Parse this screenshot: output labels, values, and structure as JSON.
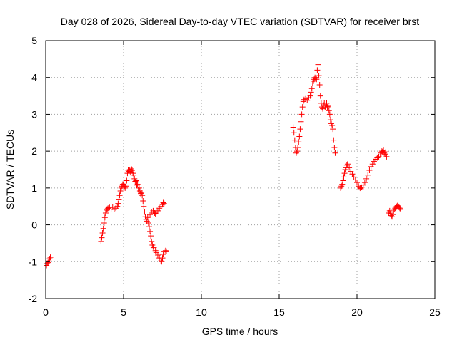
{
  "chart_data": {
    "type": "scatter",
    "title": "Day 028 of 2026, Sidereal Day-to-day VTEC variation (SDTVAR) for receiver brst",
    "xlabel": "GPS time / hours",
    "ylabel": "SDTVAR / TECUs",
    "xlim": [
      0,
      25
    ],
    "ylim": [
      -2,
      5
    ],
    "xticks": [
      0,
      5,
      10,
      15,
      20,
      25
    ],
    "yticks": [
      -2,
      -1,
      0,
      1,
      2,
      3,
      4,
      5
    ],
    "grid": true,
    "marker": "plus",
    "colors": {
      "series": "#ff0000",
      "axes": "#000000",
      "grid": "#a0a0a0"
    },
    "series": [
      {
        "name": "SDTVAR",
        "points": [
          [
            0.0,
            -1.12
          ],
          [
            0.05,
            -1.1
          ],
          [
            0.1,
            -1.05
          ],
          [
            0.15,
            -1.02
          ],
          [
            0.2,
            -0.98
          ],
          [
            0.25,
            -0.92
          ],
          [
            0.3,
            -0.88
          ],
          [
            3.55,
            -0.45
          ],
          [
            3.6,
            -0.35
          ],
          [
            3.65,
            -0.22
          ],
          [
            3.7,
            -0.1
          ],
          [
            3.75,
            0.05
          ],
          [
            3.8,
            0.2
          ],
          [
            3.85,
            0.32
          ],
          [
            3.9,
            0.4
          ],
          [
            3.95,
            0.43
          ],
          [
            4.0,
            0.45
          ],
          [
            4.1,
            0.47
          ],
          [
            4.2,
            0.43
          ],
          [
            4.3,
            0.48
          ],
          [
            4.4,
            0.42
          ],
          [
            4.5,
            0.45
          ],
          [
            4.6,
            0.5
          ],
          [
            4.65,
            0.58
          ],
          [
            4.7,
            0.68
          ],
          [
            4.75,
            0.8
          ],
          [
            4.8,
            0.92
          ],
          [
            4.85,
            1.0
          ],
          [
            4.9,
            1.05
          ],
          [
            4.95,
            1.1
          ],
          [
            5.0,
            1.1
          ],
          [
            5.05,
            1.05
          ],
          [
            5.1,
            1.0
          ],
          [
            5.15,
            1.05
          ],
          [
            5.2,
            1.2
          ],
          [
            5.25,
            1.4
          ],
          [
            5.3,
            1.48
          ],
          [
            5.35,
            1.45
          ],
          [
            5.4,
            1.5
          ],
          [
            5.45,
            1.42
          ],
          [
            5.5,
            1.52
          ],
          [
            5.55,
            1.48
          ],
          [
            5.6,
            1.4
          ],
          [
            5.65,
            1.35
          ],
          [
            5.7,
            1.25
          ],
          [
            5.75,
            1.18
          ],
          [
            5.8,
            1.2
          ],
          [
            5.85,
            1.08
          ],
          [
            5.9,
            1.1
          ],
          [
            5.95,
            0.95
          ],
          [
            6.0,
            1.0
          ],
          [
            6.05,
            0.92
          ],
          [
            6.1,
            0.85
          ],
          [
            6.15,
            0.88
          ],
          [
            6.2,
            0.8
          ],
          [
            6.25,
            0.65
          ],
          [
            6.3,
            0.5
          ],
          [
            6.35,
            0.35
          ],
          [
            6.4,
            0.22
          ],
          [
            6.45,
            0.15
          ],
          [
            6.5,
            0.1
          ],
          [
            6.55,
            0.2
          ],
          [
            6.6,
            0.05
          ],
          [
            6.65,
            -0.05
          ],
          [
            6.7,
            -0.18
          ],
          [
            6.75,
            -0.3
          ],
          [
            6.8,
            -0.45
          ],
          [
            6.85,
            -0.55
          ],
          [
            6.9,
            -0.6
          ],
          [
            6.95,
            -0.62
          ],
          [
            6.7,
            0.28
          ],
          [
            6.8,
            0.35
          ],
          [
            6.9,
            0.38
          ],
          [
            7.0,
            0.32
          ],
          [
            7.05,
            0.3
          ],
          [
            7.1,
            0.35
          ],
          [
            7.2,
            0.38
          ],
          [
            7.3,
            0.45
          ],
          [
            7.4,
            0.5
          ],
          [
            7.5,
            0.55
          ],
          [
            7.55,
            0.6
          ],
          [
            7.6,
            0.58
          ],
          [
            7.05,
            -0.7
          ],
          [
            7.1,
            -0.75
          ],
          [
            7.2,
            -0.82
          ],
          [
            7.3,
            -0.9
          ],
          [
            7.4,
            -0.98
          ],
          [
            7.45,
            -1.0
          ],
          [
            7.5,
            -0.9
          ],
          [
            7.55,
            -0.8
          ],
          [
            7.6,
            -0.72
          ],
          [
            7.7,
            -0.7
          ],
          [
            7.75,
            -0.72
          ],
          [
            15.9,
            2.65
          ],
          [
            15.95,
            2.5
          ],
          [
            16.0,
            2.3
          ],
          [
            16.05,
            2.1
          ],
          [
            16.1,
            1.95
          ],
          [
            16.15,
            2.0
          ],
          [
            16.2,
            2.1
          ],
          [
            16.25,
            2.25
          ],
          [
            16.3,
            2.4
          ],
          [
            16.35,
            2.6
          ],
          [
            16.4,
            2.8
          ],
          [
            16.45,
            3.0
          ],
          [
            16.5,
            3.2
          ],
          [
            16.55,
            3.35
          ],
          [
            16.6,
            3.4
          ],
          [
            16.7,
            3.42
          ],
          [
            16.8,
            3.38
          ],
          [
            16.9,
            3.45
          ],
          [
            17.0,
            3.5
          ],
          [
            17.05,
            3.6
          ],
          [
            17.1,
            3.7
          ],
          [
            17.15,
            3.85
          ],
          [
            17.2,
            3.9
          ],
          [
            17.25,
            3.95
          ],
          [
            17.3,
            4.0
          ],
          [
            17.35,
            3.98
          ],
          [
            17.4,
            3.95
          ],
          [
            17.45,
            4.2
          ],
          [
            17.5,
            4.35
          ],
          [
            17.55,
            4.05
          ],
          [
            17.6,
            3.8
          ],
          [
            17.65,
            3.5
          ],
          [
            17.7,
            3.3
          ],
          [
            17.75,
            3.2
          ],
          [
            17.8,
            3.15
          ],
          [
            17.85,
            3.25
          ],
          [
            17.9,
            3.3
          ],
          [
            17.95,
            3.2
          ],
          [
            18.0,
            3.25
          ],
          [
            18.05,
            3.3
          ],
          [
            18.1,
            3.2
          ],
          [
            18.15,
            3.22
          ],
          [
            18.2,
            3.1
          ],
          [
            18.25,
            3.0
          ],
          [
            18.3,
            2.85
          ],
          [
            18.35,
            2.75
          ],
          [
            18.4,
            2.7
          ],
          [
            18.45,
            2.6
          ],
          [
            18.5,
            2.3
          ],
          [
            18.55,
            2.1
          ],
          [
            18.6,
            1.95
          ],
          [
            18.95,
            1.0
          ],
          [
            19.0,
            1.05
          ],
          [
            19.05,
            1.1
          ],
          [
            19.1,
            1.2
          ],
          [
            19.15,
            1.3
          ],
          [
            19.2,
            1.4
          ],
          [
            19.25,
            1.5
          ],
          [
            19.3,
            1.55
          ],
          [
            19.35,
            1.62
          ],
          [
            19.4,
            1.65
          ],
          [
            19.5,
            1.55
          ],
          [
            19.6,
            1.45
          ],
          [
            19.7,
            1.38
          ],
          [
            19.8,
            1.3
          ],
          [
            19.9,
            1.22
          ],
          [
            20.0,
            1.15
          ],
          [
            20.1,
            1.05
          ],
          [
            20.2,
            1.0
          ],
          [
            20.25,
            0.98
          ],
          [
            20.3,
            1.02
          ],
          [
            20.4,
            1.08
          ],
          [
            20.5,
            1.15
          ],
          [
            20.6,
            1.25
          ],
          [
            20.7,
            1.35
          ],
          [
            20.8,
            1.48
          ],
          [
            20.9,
            1.58
          ],
          [
            21.0,
            1.65
          ],
          [
            21.1,
            1.72
          ],
          [
            21.2,
            1.78
          ],
          [
            21.3,
            1.82
          ],
          [
            21.4,
            1.85
          ],
          [
            21.5,
            1.9
          ],
          [
            21.55,
            1.95
          ],
          [
            21.6,
            2.0
          ],
          [
            21.65,
            1.98
          ],
          [
            21.7,
            2.02
          ],
          [
            21.75,
            1.95
          ],
          [
            21.8,
            1.92
          ],
          [
            21.85,
            1.98
          ],
          [
            21.9,
            1.85
          ],
          [
            22.0,
            0.35
          ],
          [
            22.05,
            0.32
          ],
          [
            22.1,
            0.38
          ],
          [
            22.15,
            0.3
          ],
          [
            22.2,
            0.25
          ],
          [
            22.25,
            0.22
          ],
          [
            22.3,
            0.28
          ],
          [
            22.35,
            0.35
          ],
          [
            22.4,
            0.42
          ],
          [
            22.45,
            0.45
          ],
          [
            22.5,
            0.48
          ],
          [
            22.55,
            0.5
          ],
          [
            22.6,
            0.52
          ],
          [
            22.65,
            0.5
          ],
          [
            22.7,
            0.48
          ],
          [
            22.75,
            0.45
          ],
          [
            22.8,
            0.42
          ]
        ]
      }
    ]
  }
}
